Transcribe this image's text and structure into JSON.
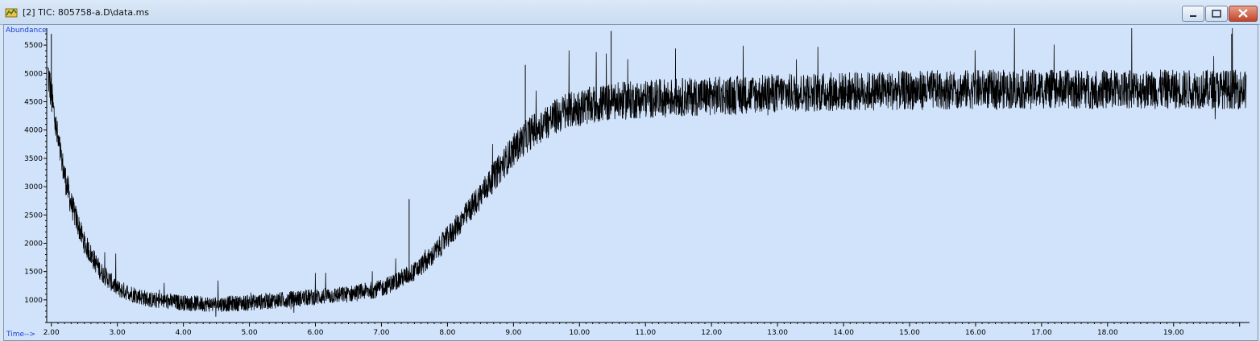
{
  "window": {
    "title": "[2] TIC: 805758-a.D\\data.ms",
    "icon": "chromatogram-app-icon",
    "controls": [
      "minimize-icon",
      "maximize-icon",
      "close-icon"
    ]
  },
  "colors": {
    "plot_background": "#d1e3fa",
    "trace": "#000000",
    "axis_label": "#1a3fd0"
  },
  "chart_data": {
    "type": "line",
    "title": "",
    "xlabel": "Time-->",
    "ylabel": "Abundance",
    "xlim": [
      1.93,
      20.15
    ],
    "ylim": [
      600,
      5800
    ],
    "x_ticks": [
      "2.00",
      "3.00",
      "4.00",
      "5.00",
      "6.00",
      "7.00",
      "8.00",
      "9.00",
      "10.00",
      "11.00",
      "12.00",
      "13.00",
      "14.00",
      "15.00",
      "16.00",
      "17.00",
      "18.00",
      "19.00"
    ],
    "y_ticks": [
      "1000",
      "1500",
      "2000",
      "2500",
      "3000",
      "3500",
      "4000",
      "4500",
      "5000",
      "5500"
    ],
    "series": [
      {
        "x": [
          1.95,
          2.0,
          2.1,
          2.2,
          2.3,
          2.5,
          2.75,
          3.0,
          3.5,
          4.0,
          4.5,
          5.0,
          5.5,
          6.0,
          6.5,
          7.0,
          7.25,
          7.5,
          7.75,
          8.0,
          8.25,
          8.5,
          8.75,
          9.0,
          9.25,
          9.5,
          9.75,
          10.0,
          10.5,
          11.0,
          11.5,
          12.0,
          13.0,
          14.0,
          15.0,
          16.0,
          17.0,
          18.0,
          19.0,
          20.1
        ],
        "values": [
          5000,
          4600,
          3800,
          3200,
          2700,
          2000,
          1500,
          1200,
          1000,
          950,
          920,
          950,
          1000,
          1050,
          1100,
          1200,
          1350,
          1500,
          1750,
          2100,
          2450,
          2850,
          3250,
          3650,
          3950,
          4150,
          4300,
          4400,
          4500,
          4550,
          4580,
          4600,
          4650,
          4680,
          4700,
          4720,
          4720,
          4720,
          4720,
          4720
        ]
      }
    ],
    "spikes": [
      {
        "x": 2.0,
        "value": 5700
      },
      {
        "x": 7.42,
        "value": 2780
      },
      {
        "x": 9.18,
        "value": 5150
      },
      {
        "x": 10.48,
        "value": 5750
      },
      {
        "x": 19.88,
        "value": 5700
      }
    ]
  }
}
